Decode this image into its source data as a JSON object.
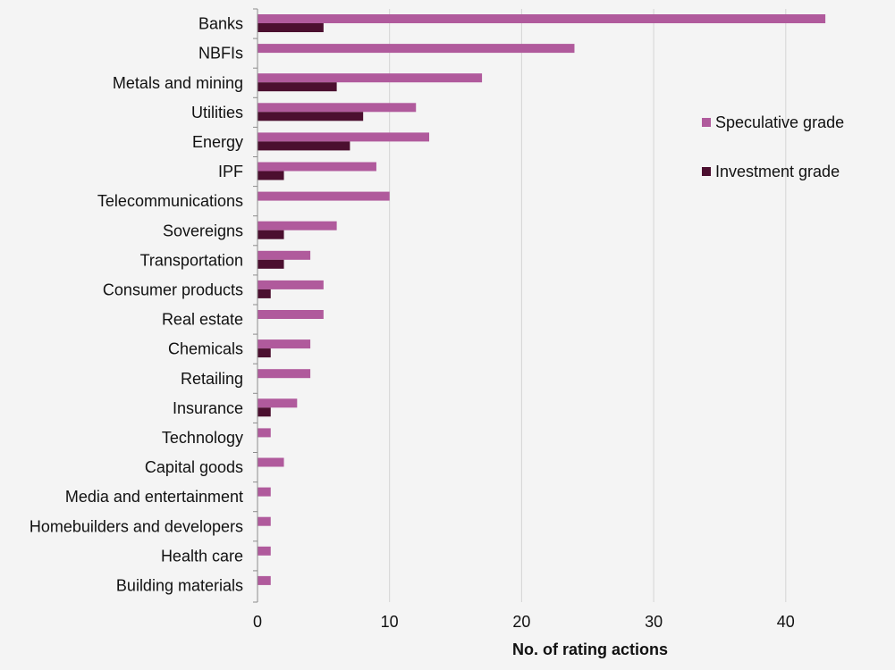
{
  "chart_data": {
    "type": "bar",
    "orientation": "horizontal",
    "categories": [
      "Banks",
      "NBFIs",
      "Metals and mining",
      "Utilities",
      "Energy",
      "IPF",
      "Telecommunications",
      "Sovereigns",
      "Transportation",
      "Consumer products",
      "Real estate",
      "Chemicals",
      "Retailing",
      "Insurance",
      "Technology",
      "Capital goods",
      "Media and entertainment",
      "Homebuilders and developers",
      "Health care",
      "Building materials"
    ],
    "series": [
      {
        "name": "Speculative grade",
        "color": "#b05a9c",
        "values": [
          43,
          24,
          17,
          12,
          13,
          9,
          10,
          6,
          4,
          5,
          5,
          4,
          4,
          3,
          1,
          2,
          1,
          1,
          1,
          1
        ]
      },
      {
        "name": "Investment grade",
        "color": "#4b0f2f",
        "values": [
          5,
          0,
          6,
          8,
          7,
          2,
          0,
          2,
          2,
          1,
          0,
          1,
          0,
          1,
          0,
          0,
          0,
          0,
          0,
          0
        ]
      }
    ],
    "xlabel": "No. of rating actions",
    "ylabel": "",
    "xlim": [
      0,
      45
    ],
    "xticks": [
      0,
      10,
      20,
      30,
      40
    ],
    "grid": "vertical",
    "legend_position": "right"
  }
}
